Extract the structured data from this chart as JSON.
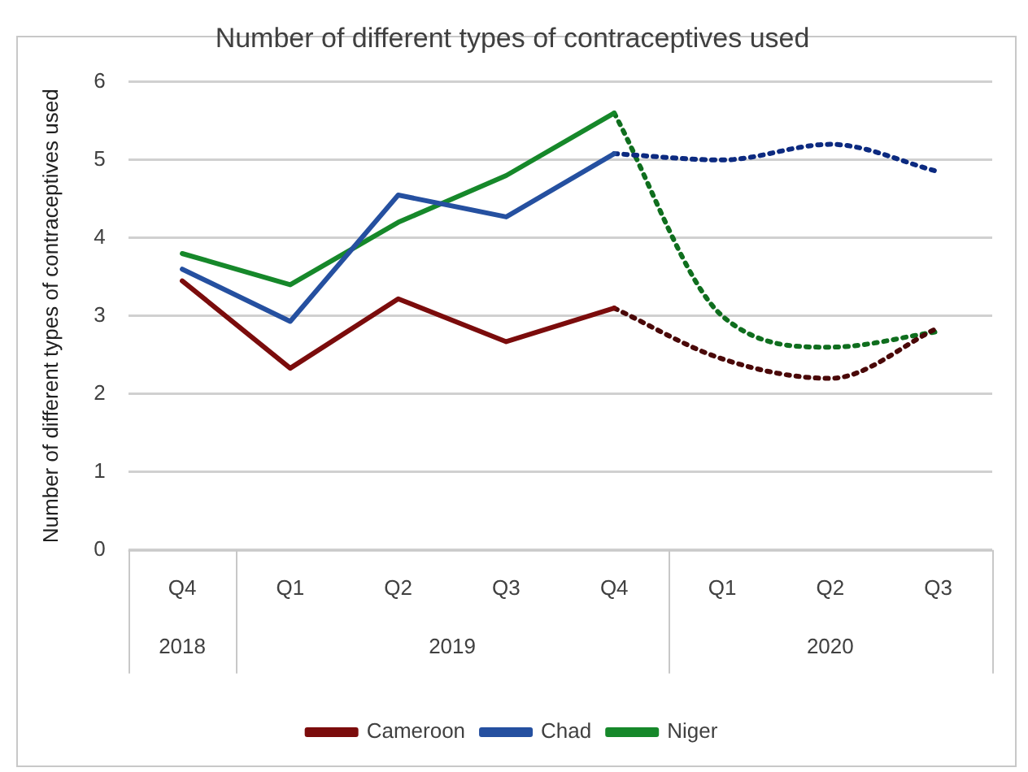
{
  "chart_data": {
    "type": "line",
    "title": "Number of different types of contraceptives used",
    "ylabel": "Number of different types of contraceptives used",
    "categories": [
      "Q4",
      "Q1",
      "Q2",
      "Q3",
      "Q4",
      "Q1",
      "Q2",
      "Q3"
    ],
    "annotations": [
      "2018",
      "2019",
      "2020"
    ],
    "series": [
      {
        "name": "Cameroon",
        "color": "#7b0c0c",
        "values": [
          3.45,
          2.33,
          3.22,
          2.67,
          3.1,
          null,
          null,
          null
        ]
      },
      {
        "name": "Chad",
        "color": "#2550a0",
        "values": [
          3.6,
          2.93,
          4.55,
          4.27,
          5.08,
          null,
          null,
          null
        ]
      },
      {
        "name": "Niger",
        "color": "#16882a",
        "values": [
          3.8,
          3.4,
          4.2,
          4.8,
          5.6,
          null,
          null,
          null
        ]
      },
      {
        "color": "#4a0808",
        "line_style": "dotted",
        "values": [
          null,
          null,
          null,
          null,
          3.1,
          2.45,
          2.2,
          2.85
        ]
      },
      {
        "color": "#0c2a80",
        "line_style": "dotted",
        "values": [
          null,
          null,
          null,
          null,
          5.08,
          5.0,
          5.2,
          4.85
        ]
      },
      {
        "color": "#0f6e1e",
        "line_style": "dotted",
        "values": [
          null,
          null,
          null,
          null,
          5.6,
          3.0,
          2.6,
          2.8
        ]
      }
    ],
    "ylim": [
      0,
      6
    ],
    "yticks": [
      0,
      1,
      2,
      3,
      4,
      5,
      6
    ],
    "grid": "y",
    "legend": "bottom",
    "marker": "none",
    "line_style": "solid"
  }
}
